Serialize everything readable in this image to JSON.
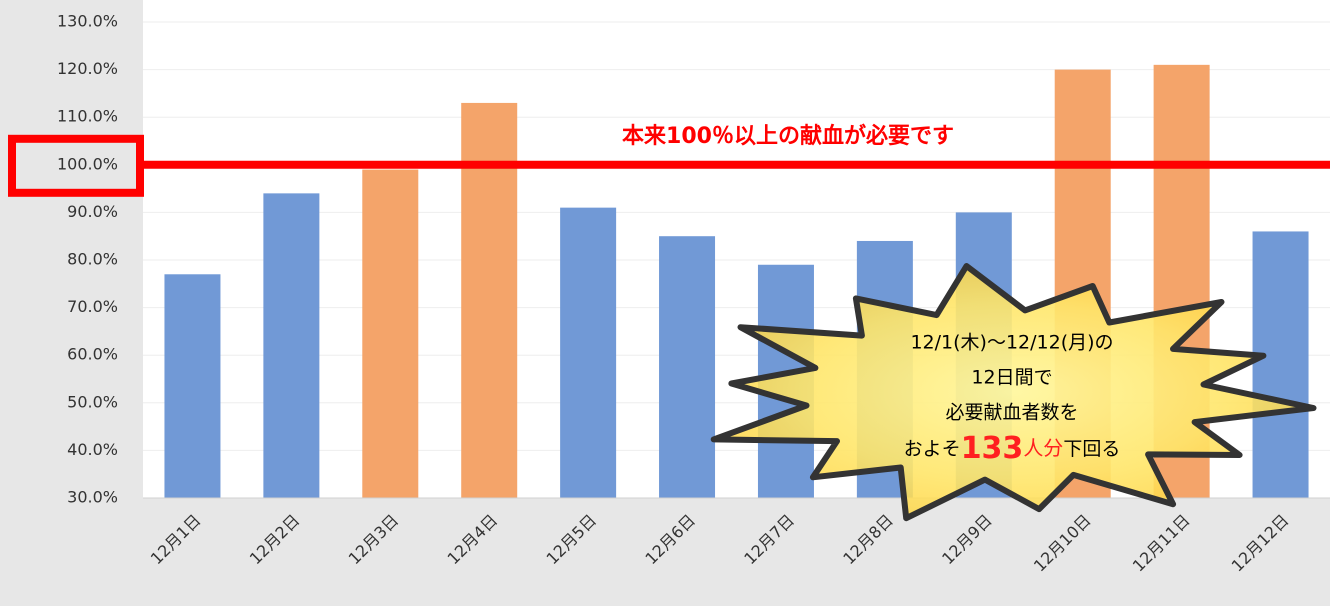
{
  "chart_data": {
    "type": "bar",
    "categories": [
      "12月1日",
      "12月2日",
      "12月3日",
      "12月4日",
      "12月5日",
      "12月6日",
      "12月7日",
      "12月8日",
      "12月9日",
      "12月10日",
      "12月11日",
      "12月12日"
    ],
    "values": [
      77,
      94,
      99,
      113,
      91,
      85,
      79,
      84,
      90,
      120,
      121,
      86
    ],
    "colors": [
      "#7199d6",
      "#7199d6",
      "#f4a46a",
      "#f4a46a",
      "#7199d6",
      "#7199d6",
      "#7199d6",
      "#7199d6",
      "#7199d6",
      "#f4a46a",
      "#f4a46a",
      "#7199d6"
    ],
    "ylim": [
      30,
      130
    ],
    "yticks": [
      {
        "value": 30,
        "label": "30.0%"
      },
      {
        "value": 40,
        "label": "40.0%"
      },
      {
        "value": 50,
        "label": "50.0%"
      },
      {
        "value": 60,
        "label": "60.0%"
      },
      {
        "value": 70,
        "label": "70.0%"
      },
      {
        "value": 80,
        "label": "80.0%"
      },
      {
        "value": 90,
        "label": "90.0%"
      },
      {
        "value": 100,
        "label": "100.0%"
      },
      {
        "value": 110,
        "label": "110.0%"
      },
      {
        "value": 120,
        "label": "120.0%"
      },
      {
        "value": 130,
        "label": "130.0%"
      }
    ],
    "grid": true,
    "reference_line": {
      "value": 100,
      "color": "#ff0000",
      "label": "本来100％以上の献血が必要です"
    },
    "callout": {
      "lines": [
        "12/1(木)〜12/12(月)の",
        "12日間で",
        "必要献血者数を"
      ],
      "last_line": [
        "およそ",
        "133",
        "人分",
        "下回る"
      ]
    }
  }
}
